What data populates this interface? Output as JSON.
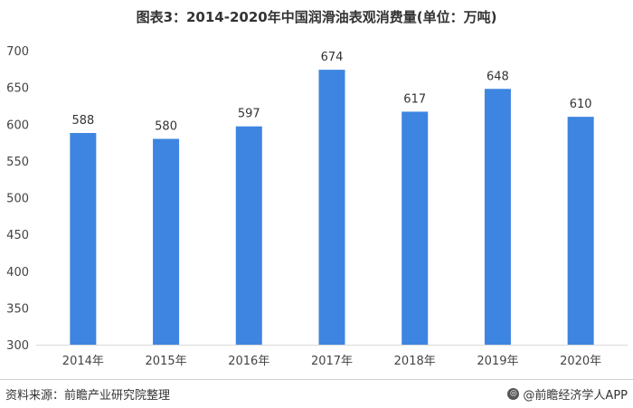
{
  "title": "图表3：2014-2020年中国润滑油表观消费量(单位：万吨)",
  "source": "资料来源：前瞻产业研究院整理",
  "credit": "@前瞻经济学人APP",
  "colors": {
    "bar": "#3d85e0",
    "axis": "#d9d9d9"
  },
  "chart_data": {
    "type": "bar",
    "title": "图表3：2014-2020年中国润滑油表观消费量(单位：万吨)",
    "categories": [
      "2014年",
      "2015年",
      "2016年",
      "2017年",
      "2018年",
      "2019年",
      "2020年"
    ],
    "values": [
      588,
      580,
      597,
      674,
      617,
      648,
      610
    ],
    "data_labels": [
      "588",
      "580",
      "597",
      "674",
      "617",
      "648",
      "610"
    ],
    "yticks": [
      "300",
      "350",
      "400",
      "450",
      "500",
      "550",
      "600",
      "650",
      "700"
    ],
    "ylim": [
      300,
      700
    ],
    "xlabel": "",
    "ylabel": "",
    "grid": false,
    "legend": "none"
  }
}
